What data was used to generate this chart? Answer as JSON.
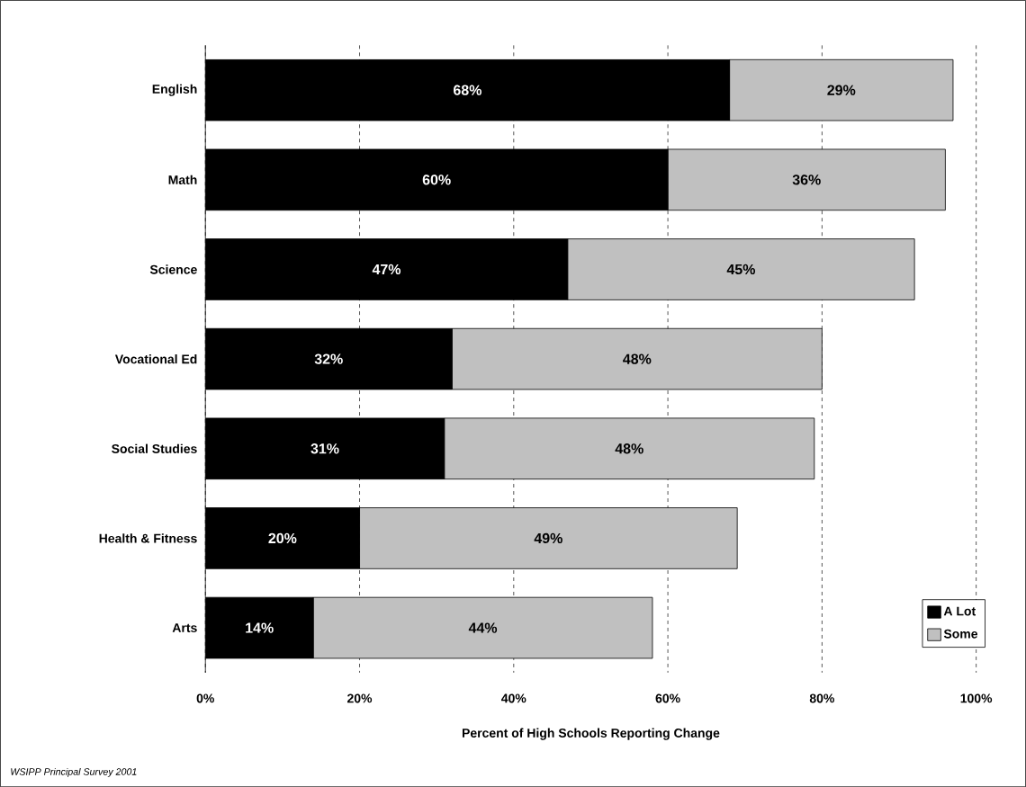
{
  "chart_data": {
    "type": "bar",
    "orientation": "horizontal",
    "stacked": true,
    "categories": [
      "English",
      "Math",
      "Science",
      "Vocational Ed",
      "Social Studies",
      "Health & Fitness",
      "Arts"
    ],
    "series": [
      {
        "name": "A Lot",
        "color": "#000000",
        "values": [
          68,
          60,
          47,
          32,
          31,
          20,
          14
        ],
        "value_labels": [
          "68%",
          "60%",
          "47%",
          "32%",
          "31%",
          "20%",
          "14%"
        ]
      },
      {
        "name": "Some",
        "color": "#c0c0c0",
        "values": [
          29,
          36,
          45,
          48,
          48,
          49,
          44
        ],
        "value_labels": [
          "29%",
          "36%",
          "45%",
          "48%",
          "48%",
          "49%",
          "44%"
        ]
      }
    ],
    "xlim": [
      0,
      100
    ],
    "xticks": [
      {
        "value": 0,
        "label": "0%"
      },
      {
        "value": 20,
        "label": "20%"
      },
      {
        "value": 40,
        "label": "40%"
      },
      {
        "value": 60,
        "label": "60%"
      },
      {
        "value": 80,
        "label": "80%"
      },
      {
        "value": 100,
        "label": "100%"
      }
    ],
    "xlabel": "Percent of High Schools Reporting Change",
    "grid": "x",
    "legend": "bottom right",
    "annotations": [
      "WSIPP Principal Survey 2001"
    ]
  }
}
